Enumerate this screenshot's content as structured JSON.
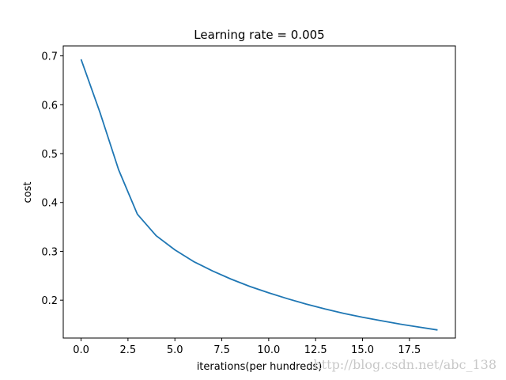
{
  "chart_data": {
    "type": "line",
    "title": "Learning rate = 0.005",
    "xlabel": "iterations(per hundreds)",
    "ylabel": "cost",
    "xlim": [
      -0.95,
      19.95
    ],
    "ylim": [
      0.1225,
      0.7204
    ],
    "xticks": [
      0.0,
      2.5,
      5.0,
      7.5,
      10.0,
      12.5,
      15.0,
      17.5
    ],
    "xtick_labels": [
      "0.0",
      "2.5",
      "5.0",
      "7.5",
      "10.0",
      "12.5",
      "15.0",
      "17.5"
    ],
    "yticks": [
      0.2,
      0.3,
      0.4,
      0.5,
      0.6,
      0.7
    ],
    "ytick_labels": [
      "0.2",
      "0.3",
      "0.4",
      "0.5",
      "0.6",
      "0.7"
    ],
    "grid": false,
    "series": [
      {
        "color": "#1f77b4",
        "x": [
          0,
          1,
          2,
          3,
          4,
          5,
          6,
          7,
          8,
          9,
          10,
          11,
          12,
          13,
          14,
          15,
          16,
          17,
          18,
          19
        ],
        "values": [
          0.693,
          0.585,
          0.467,
          0.376,
          0.332,
          0.303,
          0.279,
          0.26,
          0.243,
          0.228,
          0.215,
          0.203,
          0.192,
          0.182,
          0.173,
          0.165,
          0.158,
          0.151,
          0.145,
          0.139
        ]
      }
    ]
  },
  "watermark": "http://blog.csdn.net/abc_138"
}
